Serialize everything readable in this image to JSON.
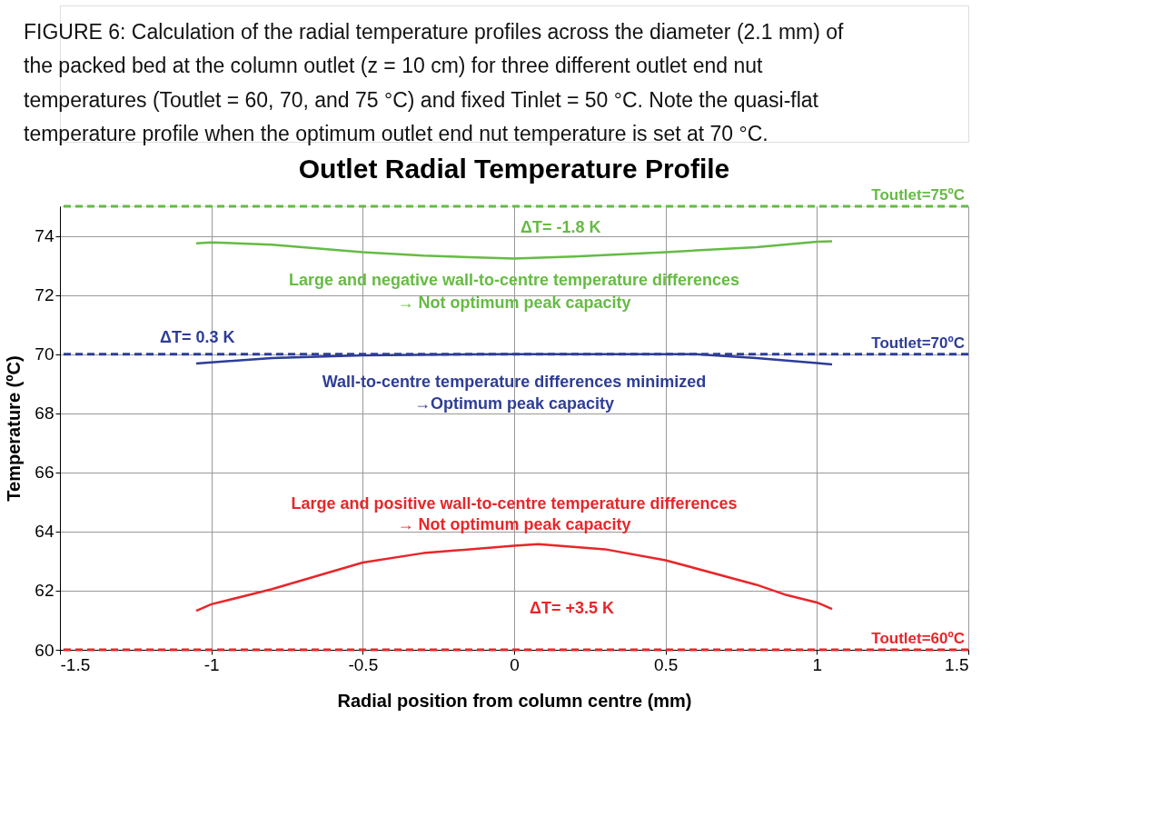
{
  "chart_data": {
    "type": "line",
    "title": "Outlet Radial Temperature Profile",
    "xlabel": "Radial position from column centre (mm)",
    "ylabel": "Temperature (ºC)",
    "xlim": [
      -1.5,
      1.5
    ],
    "xticks": [
      -1.5,
      {
        "value": -1,
        "label": "-1"
      },
      -0.5,
      {
        "value": 0,
        "label": "0"
      },
      0.5,
      {
        "value": 1,
        "label": "1"
      },
      1.5
    ],
    "ylim": [
      60,
      75
    ],
    "yticks": [
      60,
      62,
      64,
      66,
      68,
      70,
      72,
      74
    ],
    "grid": true,
    "marker": "none",
    "line_style": "solid",
    "series": [
      {
        "color": "#66bb44",
        "x": [
          -1.05,
          -1,
          -0.8,
          -0.5,
          -0.3,
          0,
          0.2,
          0.5,
          0.8,
          1.0,
          1.05
        ],
        "values": [
          73.75,
          73.78,
          73.7,
          73.45,
          73.33,
          73.23,
          73.3,
          73.45,
          73.62,
          73.8,
          73.82
        ]
      },
      {
        "color": "#2e3d96",
        "x": [
          -1.05,
          -1,
          -0.8,
          -0.5,
          0,
          0.6,
          0.8,
          1.0,
          1.05
        ],
        "values": [
          69.68,
          69.72,
          69.87,
          69.96,
          70.0,
          70.0,
          69.87,
          69.7,
          69.65
        ]
      },
      {
        "color": "#e8262a",
        "x": [
          -1.05,
          -1,
          -0.8,
          -0.5,
          -0.3,
          0,
          0.08,
          0.3,
          0.5,
          0.8,
          0.9,
          1.0,
          1.05
        ],
        "values": [
          61.32,
          61.54,
          62.05,
          62.95,
          63.27,
          63.52,
          63.57,
          63.4,
          63.03,
          62.2,
          61.85,
          61.6,
          61.38
        ]
      }
    ],
    "ref_lines": [
      {
        "axis": "y",
        "value": 75,
        "label": "Toutlet=75ºC",
        "color": "#66bb44",
        "line_style": "dashed"
      },
      {
        "axis": "y",
        "value": 70,
        "label": "Toutlet=70ºC",
        "color": "#2e3d96",
        "line_style": "dashed"
      },
      {
        "axis": "y",
        "value": 60,
        "label": "Toutlet=60ºC",
        "color": "#e8262a",
        "line_style": "dashed"
      }
    ],
    "annotations": [
      "FIGURE 6: Calculation of the radial temperature profiles across the diameter (2.1 mm) of the packed bed at the column outlet (z = 10 cm) for three different outlet end nut temperatures (Toutlet = 60, 70, and 75 °C) and fixed Tinlet = 50 °C. Note the quasi-flat temperature profile when the optimum outlet end nut temperature is set at 70 °C.",
      "ΔT= -1.8 K",
      "Large and negative wall-to-centre temperature differences",
      "→ Not optimum peak capacity",
      "ΔT= 0.3 K",
      "Wall-to-centre temperature differences minimized",
      "→Optimum peak capacity",
      "Large and positive wall-to-centre temperature differences",
      "→ Not optimum peak capacity",
      "ΔT= +3.5 K"
    ]
  }
}
